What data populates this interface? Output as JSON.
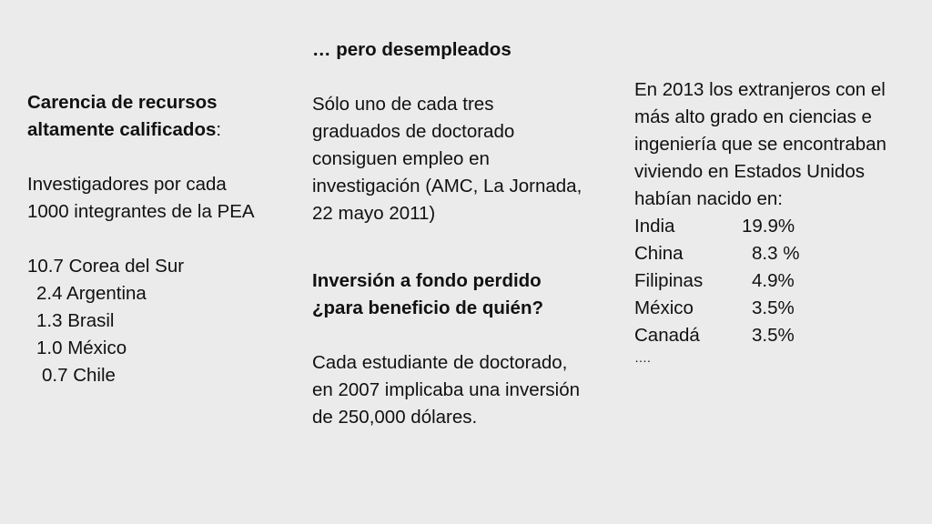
{
  "left": {
    "heading": "Carencia de recursos altamente calificados",
    "heading_suffix": ":",
    "subheading": "Investigadores por cada 1000 integrantes de la PEA",
    "items": [
      "10.7 Corea del Sur",
      "2.4 Argentina",
      "1.3 Brasil",
      "1.0 México",
      "0.7 Chile"
    ]
  },
  "middle": {
    "heading1": "… pero desempleados",
    "para1": "Sólo uno de cada tres graduados de doctorado consiguen empleo en investigación (AMC, La Jornada, 22 mayo 2011)",
    "heading2": "Inversión a fondo perdido ¿para beneficio de quién?",
    "para2": "Cada estudiante de doctorado, en 2007 implicaba una inversión de 250,000 dólares."
  },
  "right": {
    "intro": "En 2013 los extranjeros con el más alto grado en ciencias e ingeniería que se encontraban viviendo en Estados Unidos habían nacido en:",
    "countries": [
      {
        "name": "India",
        "value": "19.9%"
      },
      {
        "name": "China",
        "value": "8.3 %"
      },
      {
        "name": "Filipinas",
        "value": "4.9%"
      },
      {
        "name": "México",
        "value": "3.5%"
      },
      {
        "name": "Canadá",
        "value": "3.5%"
      }
    ],
    "ellipsis": "…."
  }
}
